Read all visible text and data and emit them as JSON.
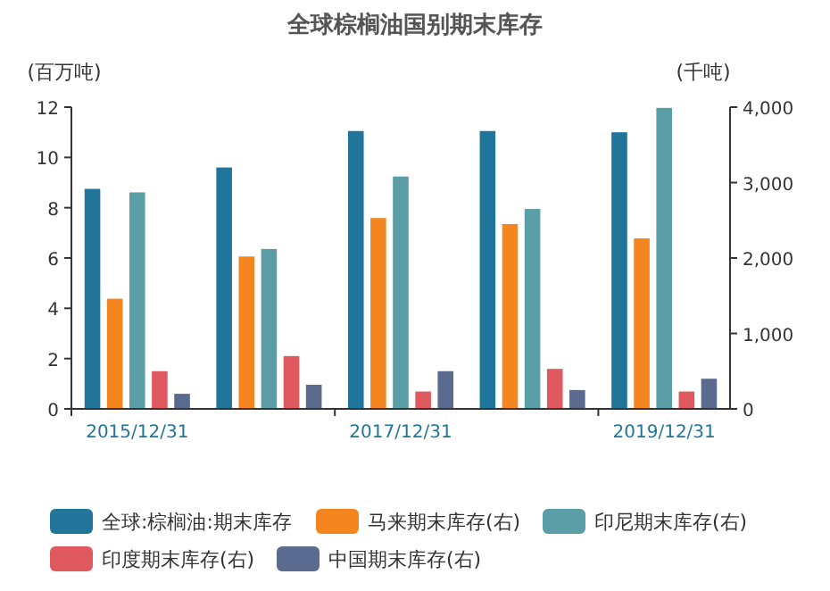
{
  "chart_data": {
    "type": "bar",
    "title": "全球棕榈油国别期末库存",
    "ylabel": "(百万吨)",
    "y2label": "(千吨)",
    "categories": [
      "2015/12/31",
      null,
      "2017/12/31",
      null,
      "2019/12/31"
    ],
    "series": [
      {
        "name": "全球:棕榈油:期末库存",
        "color": "#21759b",
        "values": [
          8.75,
          9.6,
          11.05,
          11.05,
          11.0
        ]
      },
      {
        "name": "马来期末库存(右)",
        "color": "#f5851f",
        "axis": "y2",
        "values": [
          1460,
          2020,
          2530,
          2450,
          2260
        ]
      },
      {
        "name": "印尼期末库存(右)",
        "color": "#5c9ea8",
        "axis": "y2",
        "values": [
          2870,
          2120,
          3080,
          2650,
          3990
        ]
      },
      {
        "name": "印度期末库存(右)",
        "color": "#e0595f",
        "axis": "y2",
        "values": [
          500,
          700,
          230,
          530,
          230
        ]
      },
      {
        "name": "中国期末库存(右)",
        "color": "#5a6b8f",
        "axis": "y2",
        "values": [
          200,
          320,
          500,
          250,
          400
        ]
      }
    ],
    "ylim": [
      0,
      12
    ],
    "yticks": [
      0,
      2,
      4,
      6,
      8,
      10,
      12
    ],
    "y2lim": [
      0,
      4000
    ],
    "y2ticks": [
      {
        "value": 0,
        "label": "0"
      },
      {
        "value": 1000,
        "label": "1,000"
      },
      {
        "value": 2000,
        "label": "2,000"
      },
      {
        "value": 3000,
        "label": "3,000"
      },
      {
        "value": 4000,
        "label": "4,000"
      }
    ],
    "grid": false,
    "legend": "bottom"
  }
}
